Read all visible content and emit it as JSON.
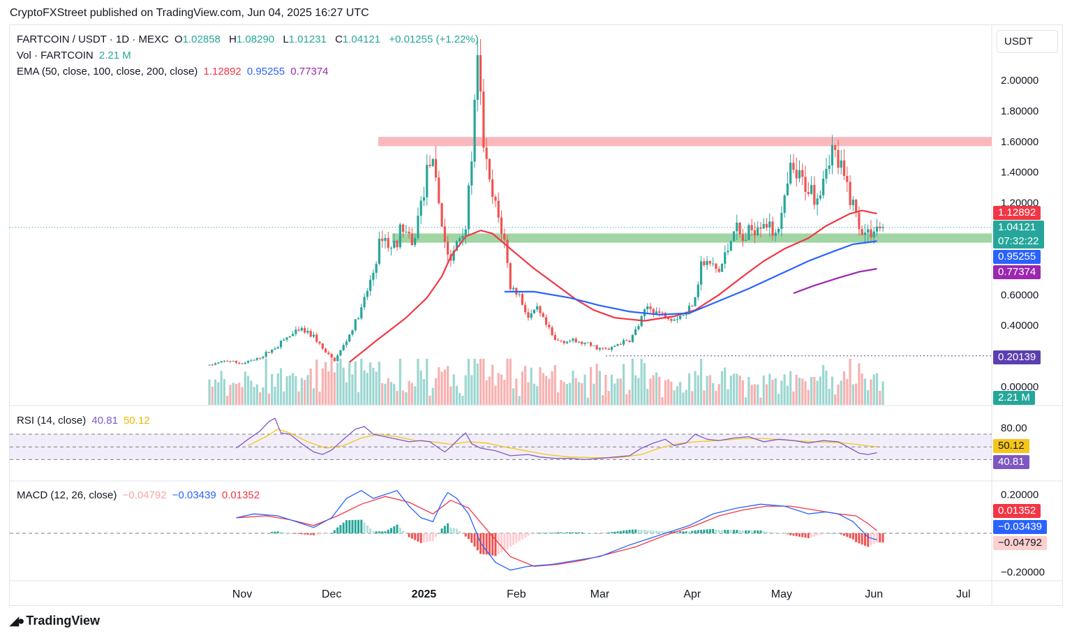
{
  "publisher": "CryptoFXStreet published on TradingView.com, Jun 04, 2025 16:27 UTC",
  "brand": "TradingView",
  "currency_label": "USDT",
  "colors": {
    "up": "#26a69a",
    "down": "#ef5350",
    "ema50": "#f23645",
    "ema100": "#2962ff",
    "ema200": "#9c27b0",
    "rsi": "#7e57c2",
    "rsi_ma": "#f5c518",
    "macd": "#2962ff",
    "signal": "#f23645",
    "resistance_zone": "#f7a1a6",
    "support_zone": "#81c784"
  },
  "legend": {
    "symbol": "FARTCOIN / USDT · 1D · MEXC",
    "o_label": "O",
    "o_value": "1.02858",
    "h_label": "H",
    "h_value": "1.08290",
    "l_label": "L",
    "l_value": "1.01231",
    "c_label": "C",
    "c_value": "1.04121",
    "change": "+0.01255 (+1.22%)",
    "vol_label": "Vol · FARTCOIN",
    "vol_value": "2.21 M",
    "ema_label": "EMA (50, close, 100, close, 200, close)",
    "ema50_value": "1.12892",
    "ema100_value": "0.95255",
    "ema200_value": "0.77374",
    "rsi_label": "RSI (14, close)",
    "rsi_value": "40.81",
    "rsi_ma_value": "50.12",
    "macd_label": "MACD (12, 26, close)",
    "macd_hist_value": "−0.04792",
    "macd_value": "−0.03439",
    "macd_signal_value": "0.01352"
  },
  "tags": {
    "ema50": "1.12892",
    "price": "1.04121",
    "countdown": "07:32:22",
    "ema100": "0.95255",
    "ema200": "0.77374",
    "low_level": "0.20139",
    "volume": "2.21 M",
    "rsi_ma": "50.12",
    "rsi": "40.81",
    "macd_signal": "0.01352",
    "macd": "−0.03439",
    "macd_hist": "−0.04792"
  },
  "chart_data": {
    "type": "candlestick",
    "price_axis": {
      "ticks": [
        {
          "value": 2.0,
          "label": "2.00000"
        },
        {
          "value": 1.8,
          "label": "1.80000"
        },
        {
          "value": 1.6,
          "label": "1.60000"
        },
        {
          "value": 1.4,
          "label": "1.40000"
        },
        {
          "value": 1.2,
          "label": "1.20000"
        },
        {
          "value": 0.6,
          "label": "0.60000"
        },
        {
          "value": 0.4,
          "label": "0.40000"
        },
        {
          "value": 0.0,
          "label": "0.00000"
        }
      ],
      "range": [
        0.0,
        2.35
      ]
    },
    "time_axis": {
      "ticks": [
        {
          "label": "Nov",
          "day": 0
        },
        {
          "label": "Dec",
          "day": 30
        },
        {
          "label": "2025",
          "day": 61,
          "bold": true
        },
        {
          "label": "Feb",
          "day": 92
        },
        {
          "label": "Mar",
          "day": 120
        },
        {
          "label": "Apr",
          "day": 151
        },
        {
          "label": "May",
          "day": 181
        },
        {
          "label": "Jun",
          "day": 212
        },
        {
          "label": "Jul",
          "day": 242
        }
      ],
      "first_day": -11,
      "last_day": 215
    },
    "zones": [
      {
        "name": "resistance",
        "from": 1.57,
        "to": 1.63
      },
      {
        "name": "support",
        "from": 0.94,
        "to": 1.0
      }
    ],
    "levels": [
      {
        "name": "low",
        "value": 0.20139
      }
    ],
    "price_anchors": [
      [
        -11,
        0.14
      ],
      [
        -5,
        0.17
      ],
      [
        0,
        0.15
      ],
      [
        5,
        0.18
      ],
      [
        10,
        0.24
      ],
      [
        15,
        0.32
      ],
      [
        20,
        0.37
      ],
      [
        24,
        0.33
      ],
      [
        28,
        0.22
      ],
      [
        31,
        0.17
      ],
      [
        35,
        0.3
      ],
      [
        40,
        0.5
      ],
      [
        44,
        0.75
      ],
      [
        47,
        1.0
      ],
      [
        50,
        0.9
      ],
      [
        54,
        1.05
      ],
      [
        57,
        0.9
      ],
      [
        60,
        1.2
      ],
      [
        63,
        1.5
      ],
      [
        66,
        1.2
      ],
      [
        68,
        0.95
      ],
      [
        70,
        0.8
      ],
      [
        72,
        0.95
      ],
      [
        75,
        1.05
      ],
      [
        77,
        1.5
      ],
      [
        79,
        2.1
      ],
      [
        81,
        1.6
      ],
      [
        83,
        1.3
      ],
      [
        86,
        1.1
      ],
      [
        88,
        0.95
      ],
      [
        90,
        0.65
      ],
      [
        93,
        0.6
      ],
      [
        96,
        0.45
      ],
      [
        99,
        0.5
      ],
      [
        102,
        0.4
      ],
      [
        105,
        0.3
      ],
      [
        110,
        0.3
      ],
      [
        115,
        0.28
      ],
      [
        120,
        0.25
      ],
      [
        123,
        0.24
      ],
      [
        126,
        0.28
      ],
      [
        130,
        0.3
      ],
      [
        133,
        0.4
      ],
      [
        136,
        0.52
      ],
      [
        140,
        0.48
      ],
      [
        145,
        0.45
      ],
      [
        149,
        0.48
      ],
      [
        152,
        0.6
      ],
      [
        154,
        0.8
      ],
      [
        157,
        0.8
      ],
      [
        160,
        0.75
      ],
      [
        163,
        0.9
      ],
      [
        165,
        1.05
      ],
      [
        168,
        0.95
      ],
      [
        172,
        1.05
      ],
      [
        175,
        1.1
      ],
      [
        178,
        1.0
      ],
      [
        181,
        1.1
      ],
      [
        184,
        1.4
      ],
      [
        187,
        1.35
      ],
      [
        190,
        1.3
      ],
      [
        193,
        1.25
      ],
      [
        196,
        1.45
      ],
      [
        198,
        1.55
      ],
      [
        200,
        1.45
      ],
      [
        202,
        1.35
      ],
      [
        205,
        1.2
      ],
      [
        207,
        1.05
      ],
      [
        209,
        1.0
      ],
      [
        211,
        1.02
      ],
      [
        213,
        1.04
      ]
    ],
    "ema50": [
      [
        36,
        0.16
      ],
      [
        45,
        0.3
      ],
      [
        55,
        0.45
      ],
      [
        62,
        0.58
      ],
      [
        67,
        0.72
      ],
      [
        70,
        0.85
      ],
      [
        75,
        0.98
      ],
      [
        80,
        1.02
      ],
      [
        84,
        1.0
      ],
      [
        90,
        0.9
      ],
      [
        98,
        0.77
      ],
      [
        105,
        0.67
      ],
      [
        112,
        0.57
      ],
      [
        118,
        0.5
      ],
      [
        125,
        0.45
      ],
      [
        135,
        0.43
      ],
      [
        145,
        0.46
      ],
      [
        152,
        0.5
      ],
      [
        160,
        0.6
      ],
      [
        168,
        0.72
      ],
      [
        175,
        0.82
      ],
      [
        182,
        0.9
      ],
      [
        190,
        0.97
      ],
      [
        196,
        1.05
      ],
      [
        201,
        1.1
      ],
      [
        204,
        1.13
      ],
      [
        208,
        1.15
      ],
      [
        213,
        1.13
      ]
    ],
    "ema100": [
      [
        88,
        0.62
      ],
      [
        98,
        0.62
      ],
      [
        110,
        0.58
      ],
      [
        120,
        0.53
      ],
      [
        130,
        0.49
      ],
      [
        140,
        0.47
      ],
      [
        150,
        0.48
      ],
      [
        160,
        0.56
      ],
      [
        170,
        0.64
      ],
      [
        180,
        0.73
      ],
      [
        190,
        0.82
      ],
      [
        198,
        0.88
      ],
      [
        205,
        0.93
      ],
      [
        213,
        0.95
      ]
    ],
    "ema200": [
      [
        185,
        0.61
      ],
      [
        192,
        0.66
      ],
      [
        200,
        0.71
      ],
      [
        207,
        0.75
      ],
      [
        213,
        0.77
      ]
    ],
    "rsi_axis": {
      "ticks": [
        {
          "value": 80,
          "label": "80.00"
        }
      ],
      "range": [
        20,
        100
      ],
      "band": [
        30,
        70
      ],
      "mid": 50
    },
    "rsi": [
      [
        -2,
        48
      ],
      [
        2,
        62
      ],
      [
        6,
        75
      ],
      [
        9,
        90
      ],
      [
        11,
        95
      ],
      [
        13,
        72
      ],
      [
        16,
        70
      ],
      [
        20,
        55
      ],
      [
        24,
        42
      ],
      [
        27,
        38
      ],
      [
        30,
        45
      ],
      [
        34,
        62
      ],
      [
        38,
        78
      ],
      [
        41,
        82
      ],
      [
        44,
        70
      ],
      [
        48,
        66
      ],
      [
        52,
        62
      ],
      [
        56,
        58
      ],
      [
        60,
        60
      ],
      [
        63,
        58
      ],
      [
        66,
        48
      ],
      [
        68,
        42
      ],
      [
        70,
        50
      ],
      [
        73,
        64
      ],
      [
        75,
        72
      ],
      [
        77,
        55
      ],
      [
        80,
        48
      ],
      [
        85,
        44
      ],
      [
        90,
        36
      ],
      [
        96,
        38
      ],
      [
        100,
        34
      ],
      [
        105,
        32
      ],
      [
        110,
        32
      ],
      [
        115,
        30
      ],
      [
        120,
        32
      ],
      [
        125,
        34
      ],
      [
        130,
        36
      ],
      [
        134,
        48
      ],
      [
        138,
        56
      ],
      [
        142,
        62
      ],
      [
        145,
        52
      ],
      [
        149,
        56
      ],
      [
        152,
        70
      ],
      [
        156,
        62
      ],
      [
        160,
        60
      ],
      [
        165,
        64
      ],
      [
        170,
        66
      ],
      [
        175,
        58
      ],
      [
        180,
        62
      ],
      [
        185,
        60
      ],
      [
        190,
        56
      ],
      [
        195,
        60
      ],
      [
        200,
        58
      ],
      [
        204,
        48
      ],
      [
        207,
        40
      ],
      [
        210,
        38
      ],
      [
        213,
        40.8
      ]
    ],
    "rsi_ma": [
      [
        2,
        52
      ],
      [
        8,
        66
      ],
      [
        12,
        78
      ],
      [
        16,
        72
      ],
      [
        22,
        58
      ],
      [
        28,
        48
      ],
      [
        34,
        52
      ],
      [
        40,
        64
      ],
      [
        46,
        70
      ],
      [
        52,
        66
      ],
      [
        58,
        60
      ],
      [
        64,
        58
      ],
      [
        70,
        54
      ],
      [
        76,
        58
      ],
      [
        82,
        56
      ],
      [
        88,
        50
      ],
      [
        95,
        44
      ],
      [
        102,
        38
      ],
      [
        110,
        34
      ],
      [
        118,
        33
      ],
      [
        126,
        33
      ],
      [
        134,
        38
      ],
      [
        140,
        48
      ],
      [
        146,
        55
      ],
      [
        152,
        58
      ],
      [
        160,
        60
      ],
      [
        168,
        63
      ],
      [
        176,
        63
      ],
      [
        184,
        60
      ],
      [
        192,
        58
      ],
      [
        200,
        57
      ],
      [
        206,
        54
      ],
      [
        213,
        50.1
      ]
    ],
    "macd_axis": {
      "ticks": [
        {
          "value": 0.2,
          "label": "0.20000"
        },
        {
          "value": -0.2,
          "label": "−0.20000"
        }
      ],
      "range": [
        -0.24,
        0.26
      ]
    },
    "macd": [
      [
        -2,
        0.08
      ],
      [
        4,
        0.1
      ],
      [
        12,
        0.09
      ],
      [
        18,
        0.06
      ],
      [
        24,
        0.03
      ],
      [
        30,
        0.08
      ],
      [
        35,
        0.18
      ],
      [
        40,
        0.22
      ],
      [
        44,
        0.18
      ],
      [
        48,
        0.2
      ],
      [
        52,
        0.22
      ],
      [
        56,
        0.14
      ],
      [
        60,
        0.08
      ],
      [
        64,
        0.06
      ],
      [
        67,
        0.16
      ],
      [
        69,
        0.21
      ],
      [
        72,
        0.18
      ],
      [
        76,
        0.1
      ],
      [
        80,
        -0.05
      ],
      [
        85,
        -0.15
      ],
      [
        90,
        -0.19
      ],
      [
        96,
        -0.17
      ],
      [
        104,
        -0.16
      ],
      [
        112,
        -0.14
      ],
      [
        120,
        -0.12
      ],
      [
        130,
        -0.06
      ],
      [
        140,
        -0.01
      ],
      [
        150,
        0.04
      ],
      [
        158,
        0.1
      ],
      [
        166,
        0.13
      ],
      [
        174,
        0.15
      ],
      [
        182,
        0.14
      ],
      [
        190,
        0.1
      ],
      [
        196,
        0.11
      ],
      [
        200,
        0.1
      ],
      [
        205,
        0.06
      ],
      [
        210,
        -0.02
      ],
      [
        213,
        -0.034
      ]
    ],
    "macd_signal": [
      [
        -2,
        0.08
      ],
      [
        8,
        0.09
      ],
      [
        16,
        0.07
      ],
      [
        24,
        0.04
      ],
      [
        32,
        0.09
      ],
      [
        40,
        0.15
      ],
      [
        48,
        0.19
      ],
      [
        56,
        0.16
      ],
      [
        64,
        0.1
      ],
      [
        70,
        0.17
      ],
      [
        76,
        0.13
      ],
      [
        82,
        0.02
      ],
      [
        90,
        -0.12
      ],
      [
        98,
        -0.17
      ],
      [
        106,
        -0.16
      ],
      [
        114,
        -0.14
      ],
      [
        122,
        -0.11
      ],
      [
        132,
        -0.07
      ],
      [
        142,
        -0.01
      ],
      [
        152,
        0.04
      ],
      [
        160,
        0.09
      ],
      [
        168,
        0.12
      ],
      [
        176,
        0.14
      ],
      [
        184,
        0.14
      ],
      [
        192,
        0.12
      ],
      [
        200,
        0.1
      ],
      [
        206,
        0.09
      ],
      [
        210,
        0.05
      ],
      [
        213,
        0.0135
      ]
    ]
  }
}
